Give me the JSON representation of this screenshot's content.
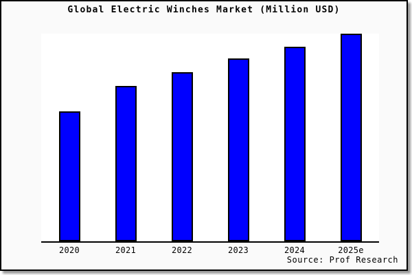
{
  "title": "Global Electric Winches Market (Million USD)",
  "source": "Source: Prof Research",
  "colors": {
    "bar_fill": "#0000ff",
    "bar_edge": "#000000",
    "figure_bg": "#fafafa",
    "plot_bg": "#ffffff",
    "frame_border": "#000000",
    "text": "#000000"
  },
  "chart_data": {
    "type": "bar",
    "title": "Global Electric Winches Market (Million USD)",
    "categories": [
      "2020",
      "2021",
      "2022",
      "2023",
      "2024",
      "2025e"
    ],
    "values": [
      62.5,
      74.8,
      81.6,
      88.0,
      93.6,
      100
    ],
    "xlabel": "",
    "ylabel": "",
    "ylim": [
      0,
      100
    ],
    "grid": false,
    "legend": null,
    "yaxis_visible": false,
    "note": "No y-axis scale is shown in the image; values are relative heights with 2025e = 100."
  }
}
